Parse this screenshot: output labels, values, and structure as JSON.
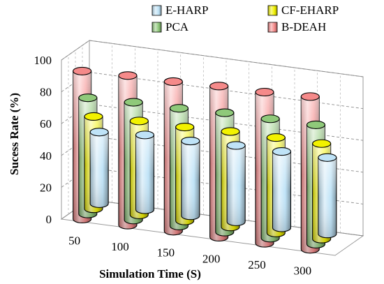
{
  "chart_data": {
    "type": "bar",
    "variant": "3d-cylinder",
    "title": "",
    "xlabel": "Simulation Time (S)",
    "ylabel": "Sucess Rate (%)",
    "ylim": [
      0,
      100
    ],
    "yticks": [
      "0",
      "20",
      "40",
      "60",
      "80",
      "100"
    ],
    "categories": [
      "50",
      "100",
      "150",
      "200",
      "250",
      "300"
    ],
    "grid": true,
    "legend_placement": "top",
    "series": [
      {
        "name": "E-HARP",
        "color": "#bfe3f7",
        "values": [
          45,
          47,
          47,
          48,
          48,
          48
        ]
      },
      {
        "name": "CF-EHARP",
        "color": "#f2f200",
        "values": [
          58,
          59,
          59,
          60,
          60,
          60
        ]
      },
      {
        "name": "PCA",
        "color": "#8fc97a",
        "values": [
          73,
          74,
          74,
          75,
          75,
          75
        ]
      },
      {
        "name": "B-DEAH",
        "color": "#f58a8a",
        "values": [
          93,
          94,
          94,
          95,
          95,
          96
        ]
      }
    ]
  }
}
